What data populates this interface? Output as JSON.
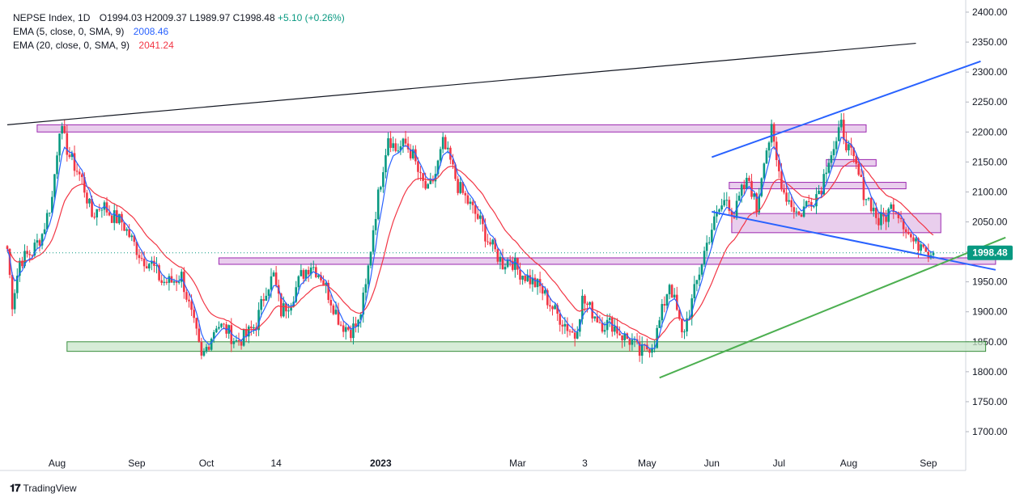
{
  "legend": {
    "symbol": "NEPSE Index, 1D",
    "open": "O1994.03",
    "high": "H2009.37",
    "low": "L1989.97",
    "close": "C1998.48",
    "change": "+5.10 (+0.26%)",
    "ema5_label": "EMA (5, close, 0, SMA, 9)",
    "ema5_value": "2008.46",
    "ema20_label": "EMA (20, close, 0, SMA, 9)",
    "ema20_value": "2041.24"
  },
  "branding": {
    "text": "TradingView"
  },
  "colors": {
    "up": "#089981",
    "down": "#f23645",
    "ema5": "#2962ff",
    "ema20": "#f23645",
    "zone_pink": "#e1bee7",
    "zone_green": "#c8e6c9",
    "trend_blue": "#2962ff",
    "trend_green": "#4caf50",
    "trend_black": "#131722"
  },
  "chart_data": {
    "type": "candlestick",
    "y_axis": {
      "min": 1650,
      "max": 2400,
      "ticks": [
        1700,
        1750,
        1800,
        1850,
        1900,
        1950,
        2000,
        2050,
        2100,
        2150,
        2200,
        2250,
        2300,
        2350,
        2400
      ],
      "tick_labels": [
        "1700.00",
        "1750.00",
        "1800.00",
        "1850.00",
        "1900.00",
        "1950.00",
        "2000.00",
        "2050.00",
        "2100.00",
        "2150.00",
        "2200.00",
        "2250.00",
        "2300.00",
        "2350.00",
        "2400.00"
      ]
    },
    "x_axis": {
      "labels": [
        "Aug",
        "Sep",
        "Oct",
        "14",
        "2023",
        "Mar",
        "3",
        "May",
        "Jun",
        "Jul",
        "Aug",
        "Sep"
      ],
      "label_days": [
        20,
        52,
        80,
        108,
        150,
        205,
        232,
        257,
        283,
        310,
        338,
        370
      ],
      "total_days": 385
    },
    "last_price": {
      "value": 1998.48,
      "label": "1998.48"
    },
    "anchors": [
      [
        0,
        2005
      ],
      [
        2,
        1915
      ],
      [
        5,
        1985
      ],
      [
        10,
        2000
      ],
      [
        14,
        2030
      ],
      [
        18,
        2090
      ],
      [
        21,
        2210
      ],
      [
        25,
        2160
      ],
      [
        30,
        2120
      ],
      [
        34,
        2060
      ],
      [
        38,
        2080
      ],
      [
        42,
        2060
      ],
      [
        46,
        2050
      ],
      [
        50,
        2020
      ],
      [
        54,
        1990
      ],
      [
        58,
        1980
      ],
      [
        62,
        1950
      ],
      [
        66,
        1950
      ],
      [
        70,
        1960
      ],
      [
        73,
        1910
      ],
      [
        76,
        1860
      ],
      [
        78,
        1820
      ],
      [
        80,
        1840
      ],
      [
        84,
        1880
      ],
      [
        88,
        1870
      ],
      [
        92,
        1850
      ],
      [
        96,
        1860
      ],
      [
        100,
        1880
      ],
      [
        104,
        1940
      ],
      [
        107,
        1960
      ],
      [
        110,
        1900
      ],
      [
        114,
        1920
      ],
      [
        118,
        1960
      ],
      [
        122,
        1980
      ],
      [
        126,
        1960
      ],
      [
        130,
        1920
      ],
      [
        134,
        1880
      ],
      [
        138,
        1870
      ],
      [
        141,
        1880
      ],
      [
        144,
        1940
      ],
      [
        147,
        2040
      ],
      [
        150,
        2120
      ],
      [
        153,
        2195
      ],
      [
        156,
        2170
      ],
      [
        160,
        2180
      ],
      [
        163,
        2160
      ],
      [
        166,
        2120
      ],
      [
        169,
        2100
      ],
      [
        172,
        2130
      ],
      [
        175,
        2180
      ],
      [
        178,
        2150
      ],
      [
        181,
        2110
      ],
      [
        184,
        2090
      ],
      [
        187,
        2070
      ],
      [
        190,
        2050
      ],
      [
        193,
        2020
      ],
      [
        196,
        2000
      ],
      [
        199,
        1980
      ],
      [
        202,
        1990
      ],
      [
        205,
        1970
      ],
      [
        208,
        1960
      ],
      [
        211,
        1950
      ],
      [
        214,
        1940
      ],
      [
        217,
        1920
      ],
      [
        220,
        1900
      ],
      [
        224,
        1880
      ],
      [
        228,
        1860
      ],
      [
        231,
        1920
      ],
      [
        235,
        1900
      ],
      [
        239,
        1880
      ],
      [
        243,
        1880
      ],
      [
        247,
        1860
      ],
      [
        251,
        1850
      ],
      [
        254,
        1830
      ],
      [
        257,
        1840
      ],
      [
        260,
        1850
      ],
      [
        263,
        1900
      ],
      [
        266,
        1950
      ],
      [
        269,
        1900
      ],
      [
        271,
        1860
      ],
      [
        274,
        1900
      ],
      [
        277,
        1950
      ],
      [
        280,
        2000
      ],
      [
        283,
        2040
      ],
      [
        286,
        2070
      ],
      [
        289,
        2090
      ],
      [
        292,
        2060
      ],
      [
        295,
        2100
      ],
      [
        298,
        2120
      ],
      [
        301,
        2070
      ],
      [
        304,
        2160
      ],
      [
        307,
        2200
      ],
      [
        309,
        2150
      ],
      [
        312,
        2100
      ],
      [
        315,
        2080
      ],
      [
        318,
        2060
      ],
      [
        321,
        2080
      ],
      [
        324,
        2090
      ],
      [
        327,
        2110
      ],
      [
        330,
        2160
      ],
      [
        333,
        2180
      ],
      [
        335,
        2210
      ],
      [
        338,
        2170
      ],
      [
        341,
        2140
      ],
      [
        344,
        2100
      ],
      [
        347,
        2080
      ],
      [
        350,
        2050
      ],
      [
        353,
        2060
      ],
      [
        356,
        2080
      ],
      [
        359,
        2060
      ],
      [
        362,
        2030
      ],
      [
        365,
        2010
      ],
      [
        368,
        2020
      ],
      [
        370,
        2000
      ],
      [
        372,
        1998.48
      ]
    ],
    "zones": [
      {
        "from_day": 12,
        "to_day": 345,
        "low": 2200,
        "high": 2212,
        "color": "pink"
      },
      {
        "from_day": 85,
        "to_day": 397,
        "low": 1980,
        "high": 1990,
        "color": "pink"
      },
      {
        "from_day": 24,
        "to_day": 393,
        "low": 1834,
        "high": 1850,
        "color": "green"
      },
      {
        "from_day": 291,
        "to_day": 375,
        "low": 2032,
        "high": 2064,
        "color": "pink"
      },
      {
        "from_day": 290,
        "to_day": 361,
        "low": 2108,
        "high": 2116,
        "color": "pink"
      },
      {
        "from_day": 329,
        "to_day": 349,
        "low": 2146,
        "high": 2154,
        "color": "pink"
      }
    ],
    "trendlines": [
      {
        "from": [
          0,
          2212
        ],
        "to": [
          365,
          2348
        ],
        "color": "black"
      },
      {
        "from": [
          283,
          2158
        ],
        "to": [
          391,
          2318
        ],
        "color": "blue"
      },
      {
        "from": [
          283,
          2067
        ],
        "to": [
          397,
          1970
        ],
        "color": "blue"
      },
      {
        "from": [
          262,
          1790
        ],
        "to": [
          401,
          2024
        ],
        "color": "green"
      }
    ]
  }
}
